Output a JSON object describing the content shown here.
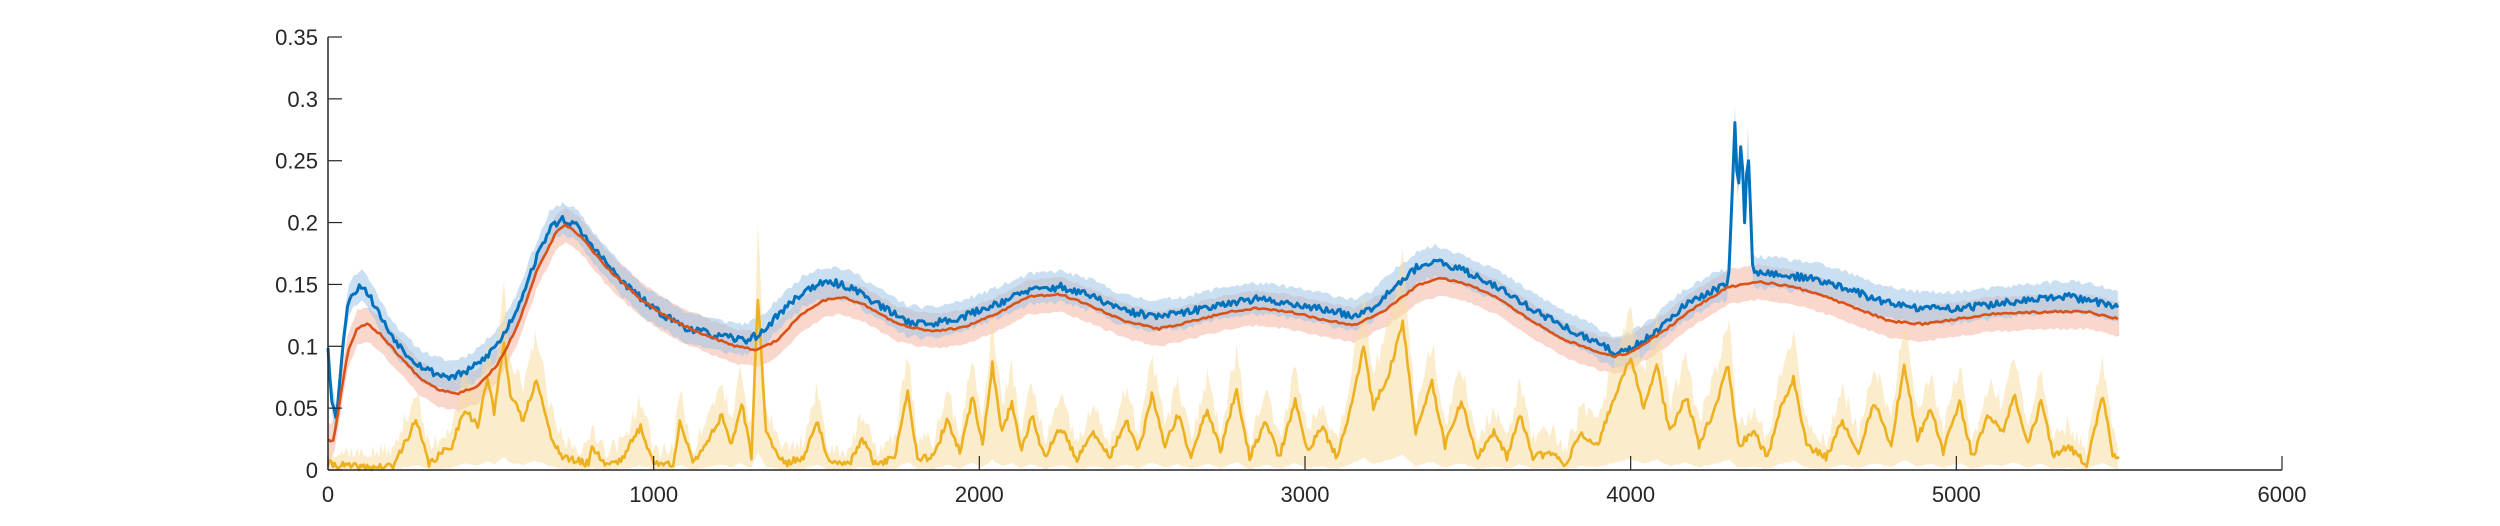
{
  "chart_data": {
    "type": "line",
    "title": "",
    "xlabel": "",
    "ylabel": "",
    "xlim": [
      0,
      6000
    ],
    "ylim": [
      0,
      0.35
    ],
    "xticks": [
      0,
      1000,
      2000,
      3000,
      4000,
      5000,
      6000
    ],
    "yticks": [
      0,
      0.05,
      0.1,
      0.15,
      0.2,
      0.25,
      0.3,
      0.35
    ],
    "xtick_labels": [
      "0",
      "1000",
      "2000",
      "3000",
      "4000",
      "5000",
      "6000"
    ],
    "ytick_labels": [
      "0",
      "0.05",
      "0.1",
      "0.15",
      "0.2",
      "0.25",
      "0.3",
      "0.35"
    ],
    "grid": false,
    "legend": "none",
    "box": "left-bottom axes only",
    "colors": {
      "series1": "#0072BD",
      "series2": "#D95319",
      "series3": "#EDB120",
      "band1": "#9FC5E8",
      "band2": "#F4B6A4",
      "band3": "#F7DDA0",
      "axis": "#262626"
    },
    "series": [
      {
        "values": [
          [
            0,
            0.1
          ],
          [
            10,
            0.06
          ],
          [
            25,
            0.04
          ],
          [
            45,
            0.1
          ],
          [
            65,
            0.14
          ],
          [
            85,
            0.145
          ],
          [
            105,
            0.15
          ],
          [
            140,
            0.135
          ],
          [
            180,
            0.115
          ],
          [
            230,
            0.097
          ],
          [
            280,
            0.085
          ],
          [
            330,
            0.078
          ],
          [
            380,
            0.075
          ],
          [
            430,
            0.08
          ],
          [
            480,
            0.09
          ],
          [
            530,
            0.105
          ],
          [
            580,
            0.13
          ],
          [
            630,
            0.165
          ],
          [
            680,
            0.195
          ],
          [
            720,
            0.203
          ],
          [
            760,
            0.198
          ],
          [
            820,
            0.178
          ],
          [
            900,
            0.153
          ],
          [
            1000,
            0.13
          ],
          [
            1100,
            0.115
          ],
          [
            1200,
            0.108
          ],
          [
            1280,
            0.105
          ],
          [
            1330,
            0.11
          ],
          [
            1380,
            0.125
          ],
          [
            1450,
            0.142
          ],
          [
            1500,
            0.15
          ],
          [
            1560,
            0.151
          ],
          [
            1620,
            0.146
          ],
          [
            1700,
            0.132
          ],
          [
            1780,
            0.12
          ],
          [
            1850,
            0.118
          ],
          [
            1950,
            0.124
          ],
          [
            2050,
            0.134
          ],
          [
            2150,
            0.145
          ],
          [
            2250,
            0.148
          ],
          [
            2350,
            0.14
          ],
          [
            2450,
            0.128
          ],
          [
            2550,
            0.124
          ],
          [
            2650,
            0.128
          ],
          [
            2750,
            0.135
          ],
          [
            2850,
            0.138
          ],
          [
            2950,
            0.135
          ],
          [
            3050,
            0.13
          ],
          [
            3150,
            0.125
          ],
          [
            3200,
            0.13
          ],
          [
            3280,
            0.15
          ],
          [
            3350,
            0.165
          ],
          [
            3400,
            0.168
          ],
          [
            3480,
            0.162
          ],
          [
            3580,
            0.15
          ],
          [
            3700,
            0.13
          ],
          [
            3800,
            0.115
          ],
          [
            3900,
            0.102
          ],
          [
            3950,
            0.095
          ],
          [
            4000,
            0.098
          ],
          [
            4060,
            0.108
          ],
          [
            4150,
            0.13
          ],
          [
            4250,
            0.145
          ],
          [
            4300,
            0.15
          ],
          [
            4320,
            0.28
          ],
          [
            4330,
            0.22
          ],
          [
            4340,
            0.27
          ],
          [
            4350,
            0.2
          ],
          [
            4360,
            0.265
          ],
          [
            4375,
            0.16
          ],
          [
            4450,
            0.158
          ],
          [
            4550,
            0.155
          ],
          [
            4650,
            0.148
          ],
          [
            4750,
            0.138
          ],
          [
            4850,
            0.132
          ],
          [
            4950,
            0.13
          ],
          [
            5050,
            0.132
          ],
          [
            5150,
            0.135
          ],
          [
            5250,
            0.138
          ],
          [
            5350,
            0.14
          ],
          [
            5450,
            0.135
          ],
          [
            5500,
            0.13
          ]
        ]
      },
      {
        "values": [
          [
            0,
            0.025
          ],
          [
            15,
            0.022
          ],
          [
            30,
            0.045
          ],
          [
            60,
            0.095
          ],
          [
            90,
            0.115
          ],
          [
            120,
            0.118
          ],
          [
            160,
            0.11
          ],
          [
            220,
            0.092
          ],
          [
            280,
            0.075
          ],
          [
            340,
            0.065
          ],
          [
            400,
            0.062
          ],
          [
            460,
            0.068
          ],
          [
            520,
            0.085
          ],
          [
            580,
            0.115
          ],
          [
            640,
            0.16
          ],
          [
            700,
            0.192
          ],
          [
            730,
            0.198
          ],
          [
            780,
            0.188
          ],
          [
            850,
            0.165
          ],
          [
            950,
            0.14
          ],
          [
            1050,
            0.122
          ],
          [
            1150,
            0.11
          ],
          [
            1250,
            0.1
          ],
          [
            1320,
            0.097
          ],
          [
            1380,
            0.105
          ],
          [
            1450,
            0.125
          ],
          [
            1520,
            0.137
          ],
          [
            1580,
            0.14
          ],
          [
            1650,
            0.133
          ],
          [
            1750,
            0.118
          ],
          [
            1850,
            0.112
          ],
          [
            1950,
            0.115
          ],
          [
            2050,
            0.126
          ],
          [
            2150,
            0.14
          ],
          [
            2250,
            0.142
          ],
          [
            2350,
            0.132
          ],
          [
            2450,
            0.12
          ],
          [
            2550,
            0.114
          ],
          [
            2650,
            0.12
          ],
          [
            2750,
            0.127
          ],
          [
            2850,
            0.131
          ],
          [
            2950,
            0.128
          ],
          [
            3050,
            0.122
          ],
          [
            3150,
            0.117
          ],
          [
            3250,
            0.13
          ],
          [
            3350,
            0.15
          ],
          [
            3420,
            0.155
          ],
          [
            3500,
            0.15
          ],
          [
            3600,
            0.138
          ],
          [
            3700,
            0.12
          ],
          [
            3800,
            0.105
          ],
          [
            3900,
            0.095
          ],
          [
            3950,
            0.092
          ],
          [
            4000,
            0.095
          ],
          [
            4100,
            0.112
          ],
          [
            4200,
            0.132
          ],
          [
            4300,
            0.148
          ],
          [
            4400,
            0.152
          ],
          [
            4500,
            0.148
          ],
          [
            4600,
            0.14
          ],
          [
            4700,
            0.13
          ],
          [
            4800,
            0.12
          ],
          [
            4900,
            0.118
          ],
          [
            5000,
            0.122
          ],
          [
            5100,
            0.126
          ],
          [
            5200,
            0.127
          ],
          [
            5300,
            0.128
          ],
          [
            5400,
            0.128
          ],
          [
            5500,
            0.122
          ]
        ]
      },
      {
        "values": [
          [
            0,
            0.005
          ],
          [
            100,
            0.002
          ],
          [
            200,
            0.003
          ],
          [
            270,
            0.04
          ],
          [
            310,
            0.005
          ],
          [
            380,
            0.02
          ],
          [
            420,
            0.05
          ],
          [
            460,
            0.035
          ],
          [
            490,
            0.075
          ],
          [
            510,
            0.045
          ],
          [
            540,
            0.105
          ],
          [
            560,
            0.06
          ],
          [
            600,
            0.04
          ],
          [
            640,
            0.075
          ],
          [
            680,
            0.03
          ],
          [
            720,
            0.01
          ],
          [
            800,
            0.005
          ],
          [
            810,
            0.02
          ],
          [
            850,
            0.005
          ],
          [
            900,
            0.008
          ],
          [
            960,
            0.035
          ],
          [
            1000,
            0.005
          ],
          [
            1060,
            0.005
          ],
          [
            1080,
            0.04
          ],
          [
            1120,
            0.005
          ],
          [
            1180,
            0.03
          ],
          [
            1210,
            0.045
          ],
          [
            1240,
            0.02
          ],
          [
            1270,
            0.055
          ],
          [
            1300,
            0.01
          ],
          [
            1320,
            0.14
          ],
          [
            1345,
            0.03
          ],
          [
            1400,
            0.005
          ],
          [
            1460,
            0.01
          ],
          [
            1500,
            0.04
          ],
          [
            1540,
            0.005
          ],
          [
            1600,
            0.005
          ],
          [
            1640,
            0.025
          ],
          [
            1680,
            0.005
          ],
          [
            1740,
            0.01
          ],
          [
            1780,
            0.065
          ],
          [
            1810,
            0.01
          ],
          [
            1860,
            0.01
          ],
          [
            1900,
            0.04
          ],
          [
            1940,
            0.015
          ],
          [
            1980,
            0.06
          ],
          [
            2010,
            0.02
          ],
          [
            2040,
            0.085
          ],
          [
            2070,
            0.03
          ],
          [
            2100,
            0.055
          ],
          [
            2130,
            0.015
          ],
          [
            2160,
            0.045
          ],
          [
            2200,
            0.01
          ],
          [
            2250,
            0.035
          ],
          [
            2300,
            0.008
          ],
          [
            2350,
            0.03
          ],
          [
            2400,
            0.01
          ],
          [
            2450,
            0.04
          ],
          [
            2490,
            0.015
          ],
          [
            2530,
            0.06
          ],
          [
            2570,
            0.02
          ],
          [
            2610,
            0.045
          ],
          [
            2650,
            0.01
          ],
          [
            2700,
            0.05
          ],
          [
            2740,
            0.015
          ],
          [
            2790,
            0.065
          ],
          [
            2830,
            0.01
          ],
          [
            2880,
            0.04
          ],
          [
            2920,
            0.01
          ],
          [
            2970,
            0.055
          ],
          [
            3010,
            0.015
          ],
          [
            3050,
            0.035
          ],
          [
            3100,
            0.01
          ],
          [
            3150,
            0.06
          ],
          [
            3180,
            0.1
          ],
          [
            3210,
            0.05
          ],
          [
            3260,
            0.08
          ],
          [
            3300,
            0.12
          ],
          [
            3340,
            0.03
          ],
          [
            3390,
            0.07
          ],
          [
            3430,
            0.02
          ],
          [
            3480,
            0.055
          ],
          [
            3530,
            0.01
          ],
          [
            3580,
            0.03
          ],
          [
            3620,
            0.01
          ],
          [
            3660,
            0.045
          ],
          [
            3700,
            0.01
          ],
          [
            3760,
            0.015
          ],
          [
            3800,
            0.005
          ],
          [
            3850,
            0.03
          ],
          [
            3900,
            0.02
          ],
          [
            3950,
            0.06
          ],
          [
            4000,
            0.09
          ],
          [
            4040,
            0.05
          ],
          [
            4080,
            0.085
          ],
          [
            4120,
            0.03
          ],
          [
            4170,
            0.06
          ],
          [
            4210,
            0.02
          ],
          [
            4260,
            0.05
          ],
          [
            4300,
            0.085
          ],
          [
            4330,
            0.02
          ],
          [
            4380,
            0.03
          ],
          [
            4420,
            0.01
          ],
          [
            4460,
            0.05
          ],
          [
            4500,
            0.075
          ],
          [
            4540,
            0.02
          ],
          [
            4600,
            0.01
          ],
          [
            4650,
            0.04
          ],
          [
            4700,
            0.015
          ],
          [
            4750,
            0.055
          ],
          [
            4800,
            0.02
          ],
          [
            4840,
            0.085
          ],
          [
            4880,
            0.025
          ],
          [
            4920,
            0.05
          ],
          [
            4960,
            0.015
          ],
          [
            5010,
            0.055
          ],
          [
            5050,
            0.01
          ],
          [
            5100,
            0.045
          ],
          [
            5140,
            0.03
          ],
          [
            5180,
            0.06
          ],
          [
            5220,
            0.02
          ],
          [
            5260,
            0.055
          ],
          [
            5300,
            0.01
          ],
          [
            5340,
            0.02
          ],
          [
            5400,
            0.005
          ],
          [
            5450,
            0.06
          ],
          [
            5480,
            0.012
          ],
          [
            5500,
            0.01
          ]
        ]
      }
    ]
  }
}
